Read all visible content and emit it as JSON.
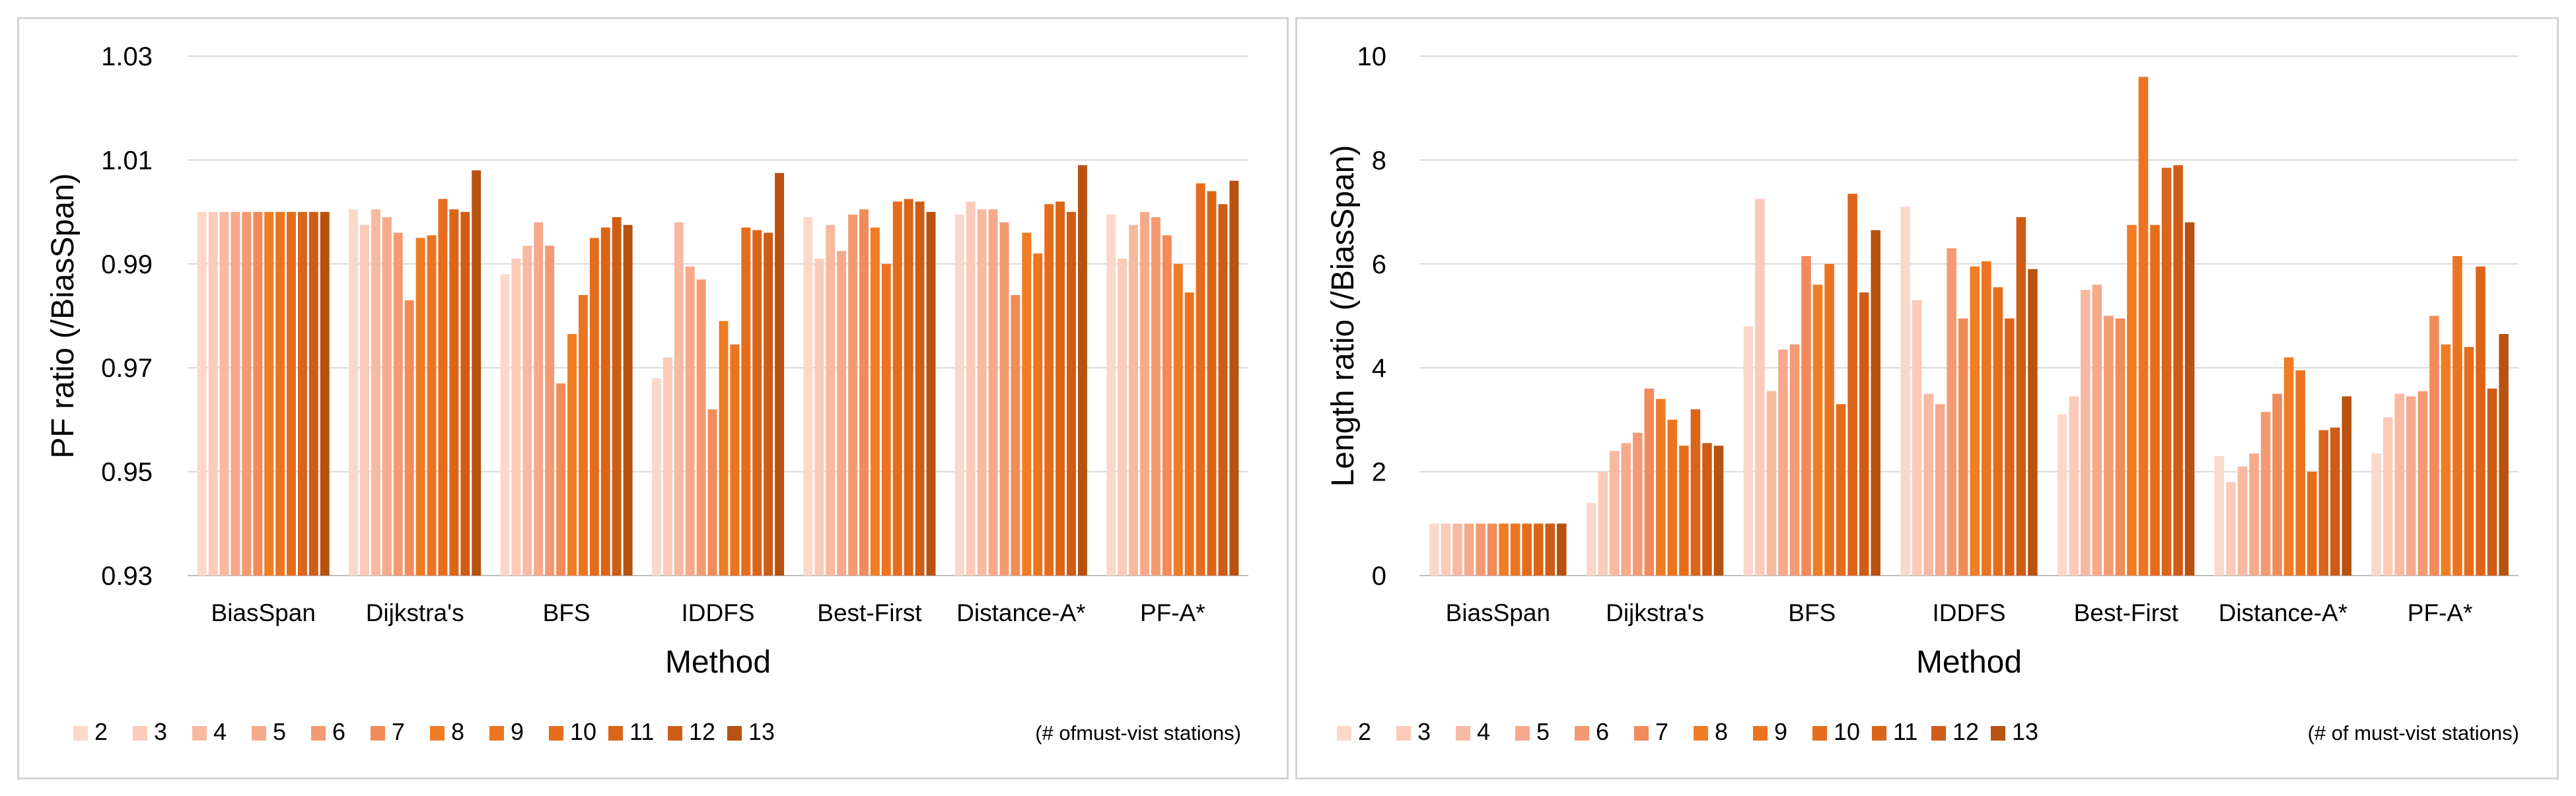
{
  "chart_data": [
    {
      "type": "bar",
      "xlabel": "Method",
      "ylabel": "PF ratio (/BiasSpan)",
      "ylim": [
        0.93,
        1.03
      ],
      "yticks": [
        "1.03",
        "1.01",
        "0.99",
        "0.97",
        "0.95",
        "0.93"
      ],
      "grid": true,
      "legend_position": "bottom",
      "legend_note": "(# ofmust-vist stations)",
      "categories": [
        "BiasSpan",
        "Dijkstra's",
        "BFS",
        "IDDFS",
        "Best-First",
        "Distance-A*",
        "PF-A*"
      ],
      "series": [
        {
          "name": "2",
          "values": [
            1.0,
            1.0005,
            0.988,
            0.968,
            0.999,
            0.9995,
            0.9995
          ]
        },
        {
          "name": "3",
          "values": [
            1.0,
            0.9975,
            0.991,
            0.972,
            0.991,
            1.002,
            0.991
          ]
        },
        {
          "name": "4",
          "values": [
            1.0,
            1.0005,
            0.9935,
            0.998,
            0.9975,
            1.0005,
            0.9975
          ]
        },
        {
          "name": "5",
          "values": [
            1.0,
            0.999,
            0.998,
            0.9895,
            0.9925,
            1.0005,
            1.0
          ]
        },
        {
          "name": "6",
          "values": [
            1.0,
            0.996,
            0.9935,
            0.987,
            0.9995,
            0.998,
            0.999
          ]
        },
        {
          "name": "7",
          "values": [
            1.0,
            0.983,
            0.967,
            0.962,
            1.0005,
            0.984,
            0.9955
          ]
        },
        {
          "name": "8",
          "values": [
            1.0,
            0.995,
            0.9765,
            0.979,
            0.997,
            0.996,
            0.99
          ]
        },
        {
          "name": "9",
          "values": [
            1.0,
            0.9955,
            0.984,
            0.9745,
            0.99,
            0.992,
            0.9845
          ]
        },
        {
          "name": "10",
          "values": [
            1.0,
            1.0025,
            0.995,
            0.997,
            1.002,
            1.0015,
            1.0055
          ]
        },
        {
          "name": "11",
          "values": [
            1.0,
            1.0005,
            0.997,
            0.9965,
            1.0025,
            1.002,
            1.004
          ]
        },
        {
          "name": "12",
          "values": [
            1.0,
            1.0,
            0.999,
            0.996,
            1.002,
            1.0,
            1.0015
          ]
        },
        {
          "name": "13",
          "values": [
            1.0,
            1.008,
            0.9975,
            1.0075,
            1.0,
            1.009,
            1.006
          ]
        }
      ]
    },
    {
      "type": "bar",
      "xlabel": "Method",
      "ylabel": "Length ratio (/BiasSpan)",
      "ylim": [
        0,
        10
      ],
      "yticks": [
        "10",
        "8",
        "6",
        "4",
        "2",
        "0"
      ],
      "grid": true,
      "legend_position": "bottom",
      "legend_note": "(# of must-vist stations)",
      "categories": [
        "BiasSpan",
        "Dijkstra's",
        "BFS",
        "IDDFS",
        "Best-First",
        "Distance-A*",
        "PF-A*"
      ],
      "series": [
        {
          "name": "2",
          "values": [
            1.0,
            1.4,
            4.8,
            7.1,
            3.1,
            2.3,
            2.35
          ]
        },
        {
          "name": "3",
          "values": [
            1.0,
            2.0,
            7.25,
            5.3,
            3.45,
            1.8,
            3.05
          ]
        },
        {
          "name": "4",
          "values": [
            1.0,
            2.4,
            3.55,
            3.5,
            5.5,
            2.1,
            3.5
          ]
        },
        {
          "name": "5",
          "values": [
            1.0,
            2.55,
            4.35,
            3.3,
            5.6,
            2.35,
            3.45
          ]
        },
        {
          "name": "6",
          "values": [
            1.0,
            2.75,
            4.45,
            6.3,
            5.0,
            3.15,
            3.55
          ]
        },
        {
          "name": "7",
          "values": [
            1.0,
            3.6,
            6.15,
            4.95,
            4.95,
            3.5,
            5.0
          ]
        },
        {
          "name": "8",
          "values": [
            1.0,
            3.4,
            5.6,
            5.95,
            6.75,
            4.2,
            4.45
          ]
        },
        {
          "name": "9",
          "values": [
            1.0,
            3.0,
            6.0,
            6.05,
            9.6,
            3.95,
            6.15
          ]
        },
        {
          "name": "10",
          "values": [
            1.0,
            2.5,
            3.3,
            5.55,
            6.75,
            2.0,
            4.4
          ]
        },
        {
          "name": "11",
          "values": [
            1.0,
            3.2,
            7.35,
            4.95,
            7.85,
            2.8,
            5.95
          ]
        },
        {
          "name": "12",
          "values": [
            1.0,
            2.55,
            5.45,
            6.9,
            7.9,
            2.85,
            3.6
          ]
        },
        {
          "name": "13",
          "values": [
            1.0,
            2.5,
            6.65,
            5.9,
            6.8,
            3.45,
            4.65
          ]
        }
      ]
    }
  ],
  "colors": [
    "#fbd8c9",
    "#fbcab8",
    "#f8b9a1",
    "#f6a98b",
    "#f49a72",
    "#f28b5a",
    "#f07c24",
    "#ec7420",
    "#e66c1b",
    "#dc6419",
    "#cf5c16",
    "#b85210"
  ]
}
